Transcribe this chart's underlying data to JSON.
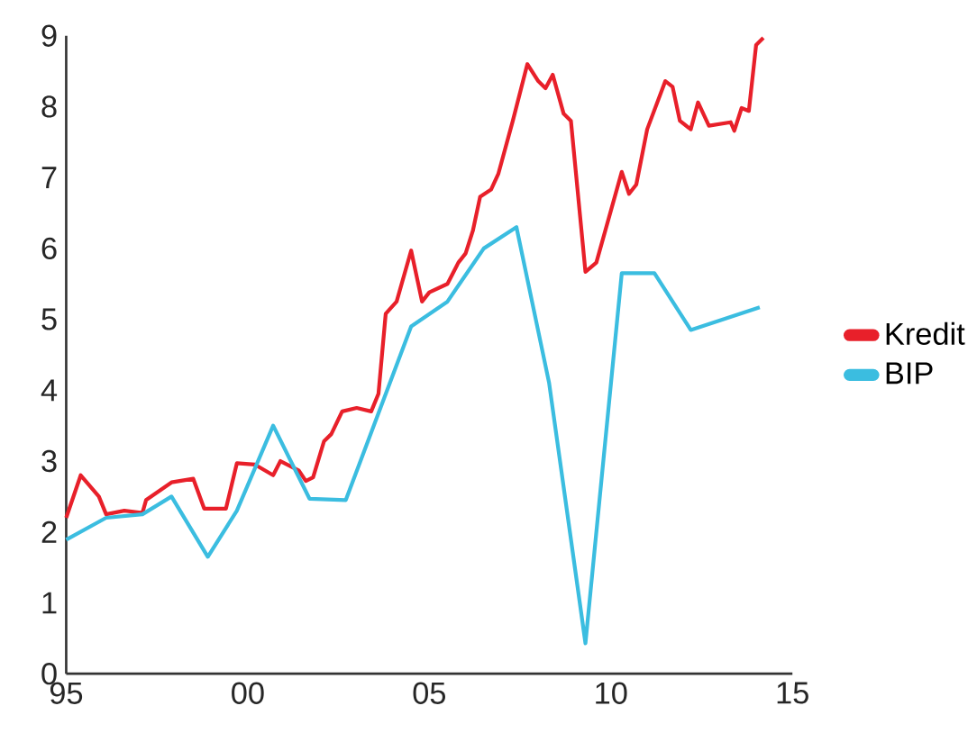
{
  "chart_data": {
    "type": "line",
    "xlim": [
      1995,
      2015
    ],
    "ylim": [
      0,
      9
    ],
    "xticks": [
      {
        "value": 1995,
        "label": "95"
      },
      {
        "value": 2000,
        "label": "00"
      },
      {
        "value": 2005,
        "label": "05"
      },
      {
        "value": 2010,
        "label": "10"
      },
      {
        "value": 2015,
        "label": "15"
      }
    ],
    "yticks": [
      0,
      1,
      2,
      3,
      4,
      5,
      6,
      7,
      8,
      9
    ],
    "legend": "right",
    "line_style": "solid",
    "marker": "none",
    "series": [
      {
        "name": "Kredit",
        "color": "#e8202a",
        "x": [
          1995.0,
          1995.4,
          1995.9,
          1996.1,
          1996.6,
          1997.1,
          1997.2,
          1997.9,
          1998.5,
          1998.8,
          1999.4,
          1999.7,
          2000.2,
          2000.7,
          2000.9,
          2001.4,
          2001.6,
          2001.8,
          2002.1,
          2002.3,
          2002.6,
          2003.0,
          2003.4,
          2003.6,
          2003.8,
          2004.1,
          2004.5,
          2004.8,
          2005.0,
          2005.5,
          2005.8,
          2006.0,
          2006.2,
          2006.4,
          2006.7,
          2006.9,
          2007.3,
          2007.7,
          2008.0,
          2008.2,
          2008.4,
          2008.7,
          2008.9,
          2009.3,
          2009.6,
          2010.3,
          2010.5,
          2010.7,
          2011.0,
          2011.5,
          2011.7,
          2011.9,
          2012.2,
          2012.4,
          2012.7,
          2013.3,
          2013.4,
          2013.6,
          2013.8,
          2014.0,
          2014.2
        ],
        "values": [
          2.2,
          2.8,
          2.5,
          2.25,
          2.3,
          2.27,
          2.45,
          2.7,
          2.75,
          2.33,
          2.33,
          2.97,
          2.95,
          2.8,
          3.0,
          2.87,
          2.72,
          2.77,
          3.28,
          3.38,
          3.7,
          3.75,
          3.7,
          3.95,
          5.08,
          5.25,
          5.97,
          5.25,
          5.38,
          5.5,
          5.8,
          5.93,
          6.25,
          6.73,
          6.83,
          7.05,
          7.8,
          8.6,
          8.36,
          8.26,
          8.45,
          7.9,
          7.8,
          5.67,
          5.8,
          7.08,
          6.77,
          6.9,
          7.68,
          8.36,
          8.28,
          7.8,
          7.68,
          8.06,
          7.73,
          7.78,
          7.66,
          7.98,
          7.94,
          8.87,
          8.97
        ]
      },
      {
        "name": "BIP",
        "color": "#3bbde0",
        "x": [
          1995.0,
          1996.1,
          1997.1,
          1997.9,
          1998.9,
          1999.7,
          2000.7,
          2001.7,
          2002.7,
          2004.5,
          2005.5,
          2006.5,
          2007.4,
          2008.3,
          2009.3,
          2010.3,
          2011.2,
          2012.2,
          2014.1
        ],
        "values": [
          1.89,
          2.2,
          2.25,
          2.5,
          1.65,
          2.3,
          3.5,
          2.47,
          2.45,
          4.9,
          5.25,
          6.0,
          6.3,
          4.1,
          0.43,
          5.65,
          5.65,
          4.85,
          5.17
        ]
      }
    ]
  }
}
